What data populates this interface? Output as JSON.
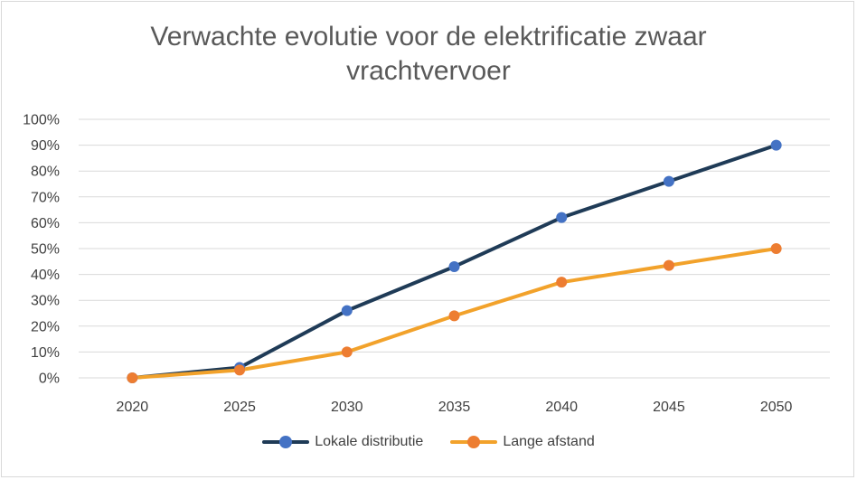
{
  "chart_data": {
    "type": "line",
    "title_lines": [
      "Verwachte evolutie voor de elektrificatie zwaar",
      "vrachtvervoer"
    ],
    "categories": [
      "2020",
      "2025",
      "2030",
      "2035",
      "2040",
      "2045",
      "2050"
    ],
    "ylim": [
      0,
      100
    ],
    "yticks": [
      0,
      10,
      20,
      30,
      40,
      50,
      60,
      70,
      80,
      90,
      100
    ],
    "ytick_labels": [
      "0%",
      "10%",
      "20%",
      "30%",
      "40%",
      "50%",
      "60%",
      "70%",
      "80%",
      "90%",
      "100%"
    ],
    "grid": true,
    "legend_position": "bottom",
    "series": [
      {
        "name": "Lokale distributie",
        "values": [
          0,
          4,
          26,
          43,
          62,
          76,
          90
        ],
        "line_color": "#1f3b57",
        "marker_color": "#4472c4"
      },
      {
        "name": "Lange afstand",
        "values": [
          0,
          3,
          10,
          24,
          37,
          43.5,
          50
        ],
        "line_color": "#f2a22b",
        "marker_color": "#ed7d31"
      }
    ]
  }
}
